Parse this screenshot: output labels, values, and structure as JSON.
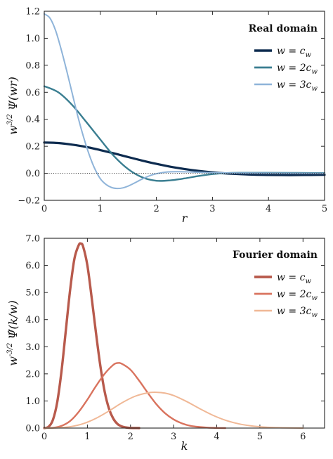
{
  "chart_data": [
    {
      "type": "line",
      "title": "Real domain",
      "xlabel": "r",
      "ylabel": "w^{3/2} Ψ(wr)",
      "xlim": [
        0,
        5
      ],
      "ylim": [
        -0.2,
        1.2
      ],
      "xticks": [
        0,
        1,
        2,
        3,
        4,
        5
      ],
      "yticks": [
        -0.2,
        0.0,
        0.2,
        0.4,
        0.6,
        0.8,
        1.0,
        1.2
      ],
      "xtick_labels": [
        "0",
        "1",
        "2",
        "3",
        "4",
        "5"
      ],
      "ytick_labels": [
        "−0.2",
        "0.0",
        "0.2",
        "0.4",
        "0.6",
        "0.8",
        "1.0",
        "1.2"
      ],
      "reference_line": 0.0,
      "legend_placement": "upper-right",
      "series": [
        {
          "legend": "w = c_w",
          "color": "#0d2b4f",
          "x": [
            0,
            0.25,
            0.5,
            0.75,
            1.0,
            1.25,
            1.5,
            1.75,
            2.0,
            2.25,
            2.5,
            2.75,
            3.0,
            3.25,
            3.5,
            3.75,
            4.0,
            4.25,
            4.5,
            4.75,
            5.0
          ],
          "y": [
            0.228,
            0.224,
            0.212,
            0.195,
            0.172,
            0.147,
            0.12,
            0.094,
            0.07,
            0.049,
            0.032,
            0.018,
            0.007,
            -0.001,
            -0.006,
            -0.01,
            -0.012,
            -0.013,
            -0.013,
            -0.012,
            -0.011
          ]
        },
        {
          "legend": "w = 2c_w",
          "color": "#3a7e91",
          "x": [
            0,
            0.25,
            0.5,
            0.75,
            1.0,
            1.25,
            1.5,
            1.75,
            2.0,
            2.25,
            2.5,
            2.75,
            3.0,
            3.25,
            3.5,
            4.0,
            4.5,
            5.0
          ],
          "y": [
            0.645,
            0.6,
            0.505,
            0.38,
            0.25,
            0.125,
            0.03,
            -0.03,
            -0.055,
            -0.052,
            -0.038,
            -0.02,
            -0.006,
            0.002,
            0.004,
            0.004,
            0.003,
            0.002
          ]
        },
        {
          "legend": "w = 3c_w",
          "color": "#8fb4d9",
          "x": [
            0,
            0.1,
            0.2,
            0.3,
            0.4,
            0.5,
            0.6,
            0.7,
            0.8,
            0.9,
            1.0,
            1.1,
            1.2,
            1.3,
            1.4,
            1.5,
            1.6,
            1.7,
            1.8,
            1.9,
            2.0,
            2.2,
            2.4,
            2.6,
            2.8,
            3.0,
            3.5,
            4.0,
            5.0
          ],
          "y": [
            1.18,
            1.15,
            1.06,
            0.92,
            0.76,
            0.59,
            0.42,
            0.27,
            0.14,
            0.035,
            -0.04,
            -0.082,
            -0.105,
            -0.112,
            -0.108,
            -0.094,
            -0.074,
            -0.052,
            -0.032,
            -0.015,
            -0.003,
            0.01,
            0.012,
            0.01,
            0.007,
            0.004,
            0.002,
            0.001,
            0.0
          ]
        }
      ]
    },
    {
      "type": "line",
      "title": "Fourier domain",
      "xlabel": "k",
      "ylabel": "w^{-3/2} Ψ̂(k/w)",
      "xlim": [
        0,
        6.5
      ],
      "ylim": [
        0,
        7.0
      ],
      "xticks": [
        0,
        1,
        2,
        3,
        4,
        5,
        6
      ],
      "yticks": [
        0.0,
        1.0,
        2.0,
        3.0,
        4.0,
        5.0,
        6.0,
        7.0
      ],
      "xtick_labels": [
        "0",
        "1",
        "2",
        "3",
        "4",
        "5",
        "6"
      ],
      "ytick_labels": [
        "0.0",
        "1.0",
        "2.0",
        "3.0",
        "4.0",
        "5.0",
        "6.0",
        "7.0"
      ],
      "legend_placement": "upper-right",
      "series": [
        {
          "legend": "w = c_w",
          "color": "#b85a4c",
          "x": [
            0,
            0.1,
            0.2,
            0.3,
            0.4,
            0.5,
            0.6,
            0.7,
            0.8,
            0.85,
            0.9,
            1.0,
            1.1,
            1.2,
            1.3,
            1.4,
            1.5,
            1.6,
            1.7,
            1.8,
            1.9,
            2.0,
            2.2
          ],
          "y": [
            0,
            0.05,
            0.3,
            0.95,
            2.1,
            3.6,
            5.1,
            6.25,
            6.75,
            6.8,
            6.7,
            6.0,
            4.8,
            3.5,
            2.3,
            1.35,
            0.72,
            0.35,
            0.15,
            0.06,
            0.02,
            0.005,
            0
          ]
        },
        {
          "legend": "w = 2c_w",
          "color": "#d9735e",
          "x": [
            0,
            0.2,
            0.4,
            0.6,
            0.8,
            1.0,
            1.2,
            1.4,
            1.6,
            1.7,
            1.8,
            2.0,
            2.2,
            2.4,
            2.6,
            2.8,
            3.0,
            3.2,
            3.4,
            3.6,
            3.8,
            4.0,
            4.2
          ],
          "y": [
            0,
            0.01,
            0.08,
            0.26,
            0.6,
            1.05,
            1.55,
            2.0,
            2.33,
            2.4,
            2.37,
            2.15,
            1.75,
            1.3,
            0.88,
            0.55,
            0.32,
            0.17,
            0.08,
            0.04,
            0.015,
            0.005,
            0
          ]
        },
        {
          "legend": "w = 3c_w",
          "color": "#f0b896",
          "x": [
            0,
            0.3,
            0.6,
            0.9,
            1.2,
            1.5,
            1.8,
            2.1,
            2.4,
            2.6,
            2.8,
            3.0,
            3.3,
            3.6,
            3.9,
            4.2,
            4.5,
            4.8,
            5.1,
            5.4,
            5.7,
            6.0
          ],
          "y": [
            0,
            0.01,
            0.05,
            0.16,
            0.36,
            0.63,
            0.93,
            1.17,
            1.3,
            1.32,
            1.29,
            1.2,
            0.98,
            0.72,
            0.48,
            0.29,
            0.16,
            0.08,
            0.035,
            0.015,
            0.005,
            0
          ]
        }
      ]
    }
  ]
}
